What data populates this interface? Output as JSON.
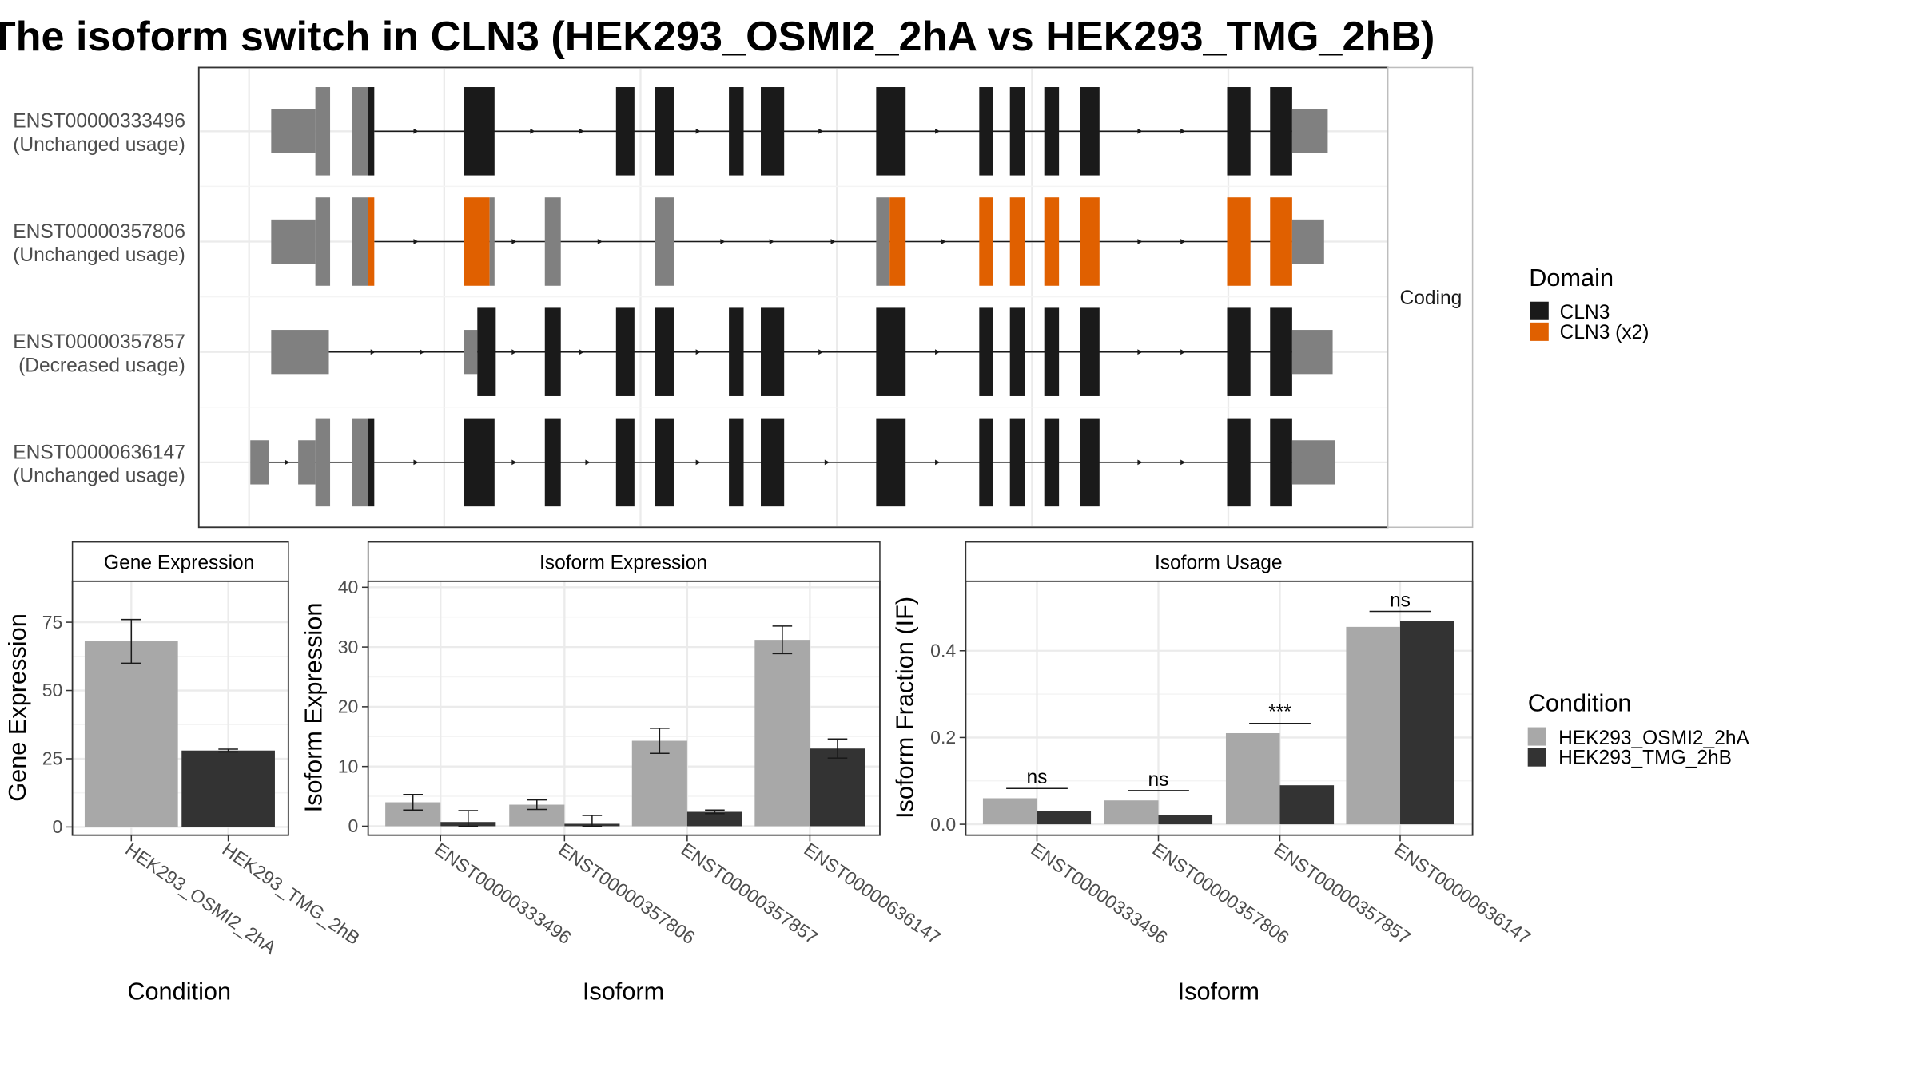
{
  "title": "The isoform switch in CLN3 (HEK293_OSMI2_2hA vs HEK293_TMG_2hB)",
  "colors": {
    "exon_utr": "#808080",
    "domain_cln3": "#1a1a1a",
    "domain_cln3_x2": "#e06000",
    "cond_a": "#a8a8a8",
    "cond_b": "#333333",
    "strip_bg": "#ffffff",
    "grid": "#ebebeb"
  },
  "transcripts": {
    "strip_label": "Coding",
    "rows": [
      {
        "id": "ENST00000333496",
        "usage": "(Unchanged usage)",
        "domain": "CLN3"
      },
      {
        "id": "ENST00000357806",
        "usage": "(Unchanged usage)",
        "domain": "CLN3 (x2)"
      },
      {
        "id": "ENST00000357857",
        "usage": "(Decreased usage)",
        "domain": "CLN3"
      },
      {
        "id": "ENST00000636147",
        "usage": "(Unchanged usage)",
        "domain": "CLN3"
      }
    ]
  },
  "legends": {
    "domain": {
      "title": "Domain",
      "items": [
        "CLN3",
        "CLN3 (x2)"
      ]
    },
    "condition": {
      "title": "Condition",
      "items": [
        "HEK293_OSMI2_2hA",
        "HEK293_TMG_2hB"
      ]
    }
  },
  "chart_data": [
    {
      "type": "bar",
      "title": "Gene Expression",
      "xlabel": "Condition",
      "ylabel": "Gene Expression",
      "categories": [
        "HEK293_OSMI2_2hA",
        "HEK293_TMG_2hB"
      ],
      "values": [
        68,
        28
      ],
      "errors": [
        [
          60,
          76
        ],
        [
          27.5,
          28.5
        ]
      ],
      "ylim": [
        -3,
        90
      ],
      "yticks": [
        0,
        25,
        50,
        75
      ]
    },
    {
      "type": "bar",
      "title": "Isoform Expression",
      "xlabel": "Isoform",
      "ylabel": "Isoform Expression",
      "categories": [
        "ENST00000333496",
        "ENST00000357806",
        "ENST00000357857",
        "ENST00000636147"
      ],
      "series": [
        {
          "name": "HEK293_OSMI2_2hA",
          "values": [
            4.0,
            3.6,
            14.3,
            31.2
          ],
          "errors": [
            [
              2.7,
              5.3
            ],
            [
              2.8,
              4.4
            ],
            [
              12.2,
              16.4
            ],
            [
              28.9,
              33.5
            ]
          ]
        },
        {
          "name": "HEK293_TMG_2hB",
          "values": [
            0.7,
            0.4,
            2.4,
            13.0
          ],
          "errors": [
            [
              0.0,
              2.6
            ],
            [
              0.0,
              1.8
            ],
            [
              2.1,
              2.7
            ],
            [
              11.4,
              14.6
            ]
          ]
        }
      ],
      "ylim": [
        -1.5,
        41
      ],
      "yticks": [
        0,
        10,
        20,
        30,
        40
      ]
    },
    {
      "type": "bar",
      "title": "Isoform Usage",
      "xlabel": "Isoform",
      "ylabel": "Isoform Fraction (IF)",
      "categories": [
        "ENST00000333496",
        "ENST00000357806",
        "ENST00000357857",
        "ENST00000636147"
      ],
      "series": [
        {
          "name": "HEK293_OSMI2_2hA",
          "values": [
            0.06,
            0.055,
            0.21,
            0.455
          ]
        },
        {
          "name": "HEK293_TMG_2hB",
          "values": [
            0.03,
            0.022,
            0.09,
            0.468
          ]
        }
      ],
      "significance": [
        "ns",
        "ns",
        "***",
        "ns"
      ],
      "ylim": [
        -0.025,
        0.56
      ],
      "yticks": [
        0.0,
        0.2,
        0.4
      ],
      "ytick_labels": [
        "0.0",
        "0.2",
        "0.4"
      ]
    }
  ]
}
